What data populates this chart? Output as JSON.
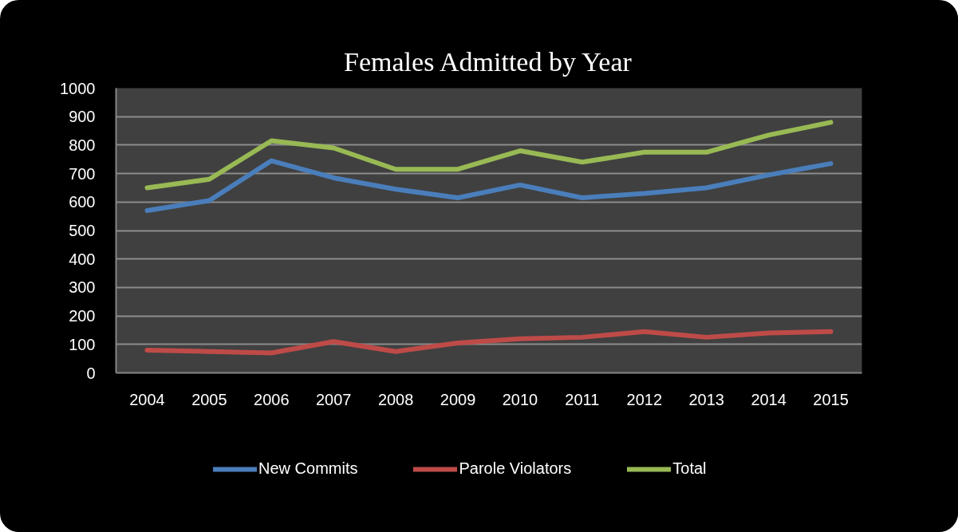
{
  "chart_data": {
    "type": "line",
    "title": "Females Admitted by Year",
    "categories": [
      "2004",
      "2005",
      "2006",
      "2007",
      "2008",
      "2009",
      "2010",
      "2011",
      "2012",
      "2013",
      "2014",
      "2015"
    ],
    "ylim": [
      0,
      1000
    ],
    "yticks": [
      0,
      100,
      200,
      300,
      400,
      500,
      600,
      700,
      800,
      900,
      1000
    ],
    "grid": "y",
    "legend": "bottom",
    "series": [
      {
        "name": "New Commits",
        "color": "#4a7ebb",
        "values": [
          570,
          605,
          745,
          685,
          645,
          615,
          660,
          615,
          630,
          650,
          695,
          735
        ]
      },
      {
        "name": "Parole Violators",
        "color": "#be4b48",
        "values": [
          80,
          75,
          70,
          110,
          75,
          105,
          120,
          125,
          145,
          125,
          140,
          145
        ]
      },
      {
        "name": "Total",
        "color": "#98b954",
        "values": [
          650,
          680,
          815,
          790,
          715,
          715,
          780,
          740,
          775,
          775,
          835,
          880
        ]
      }
    ]
  }
}
